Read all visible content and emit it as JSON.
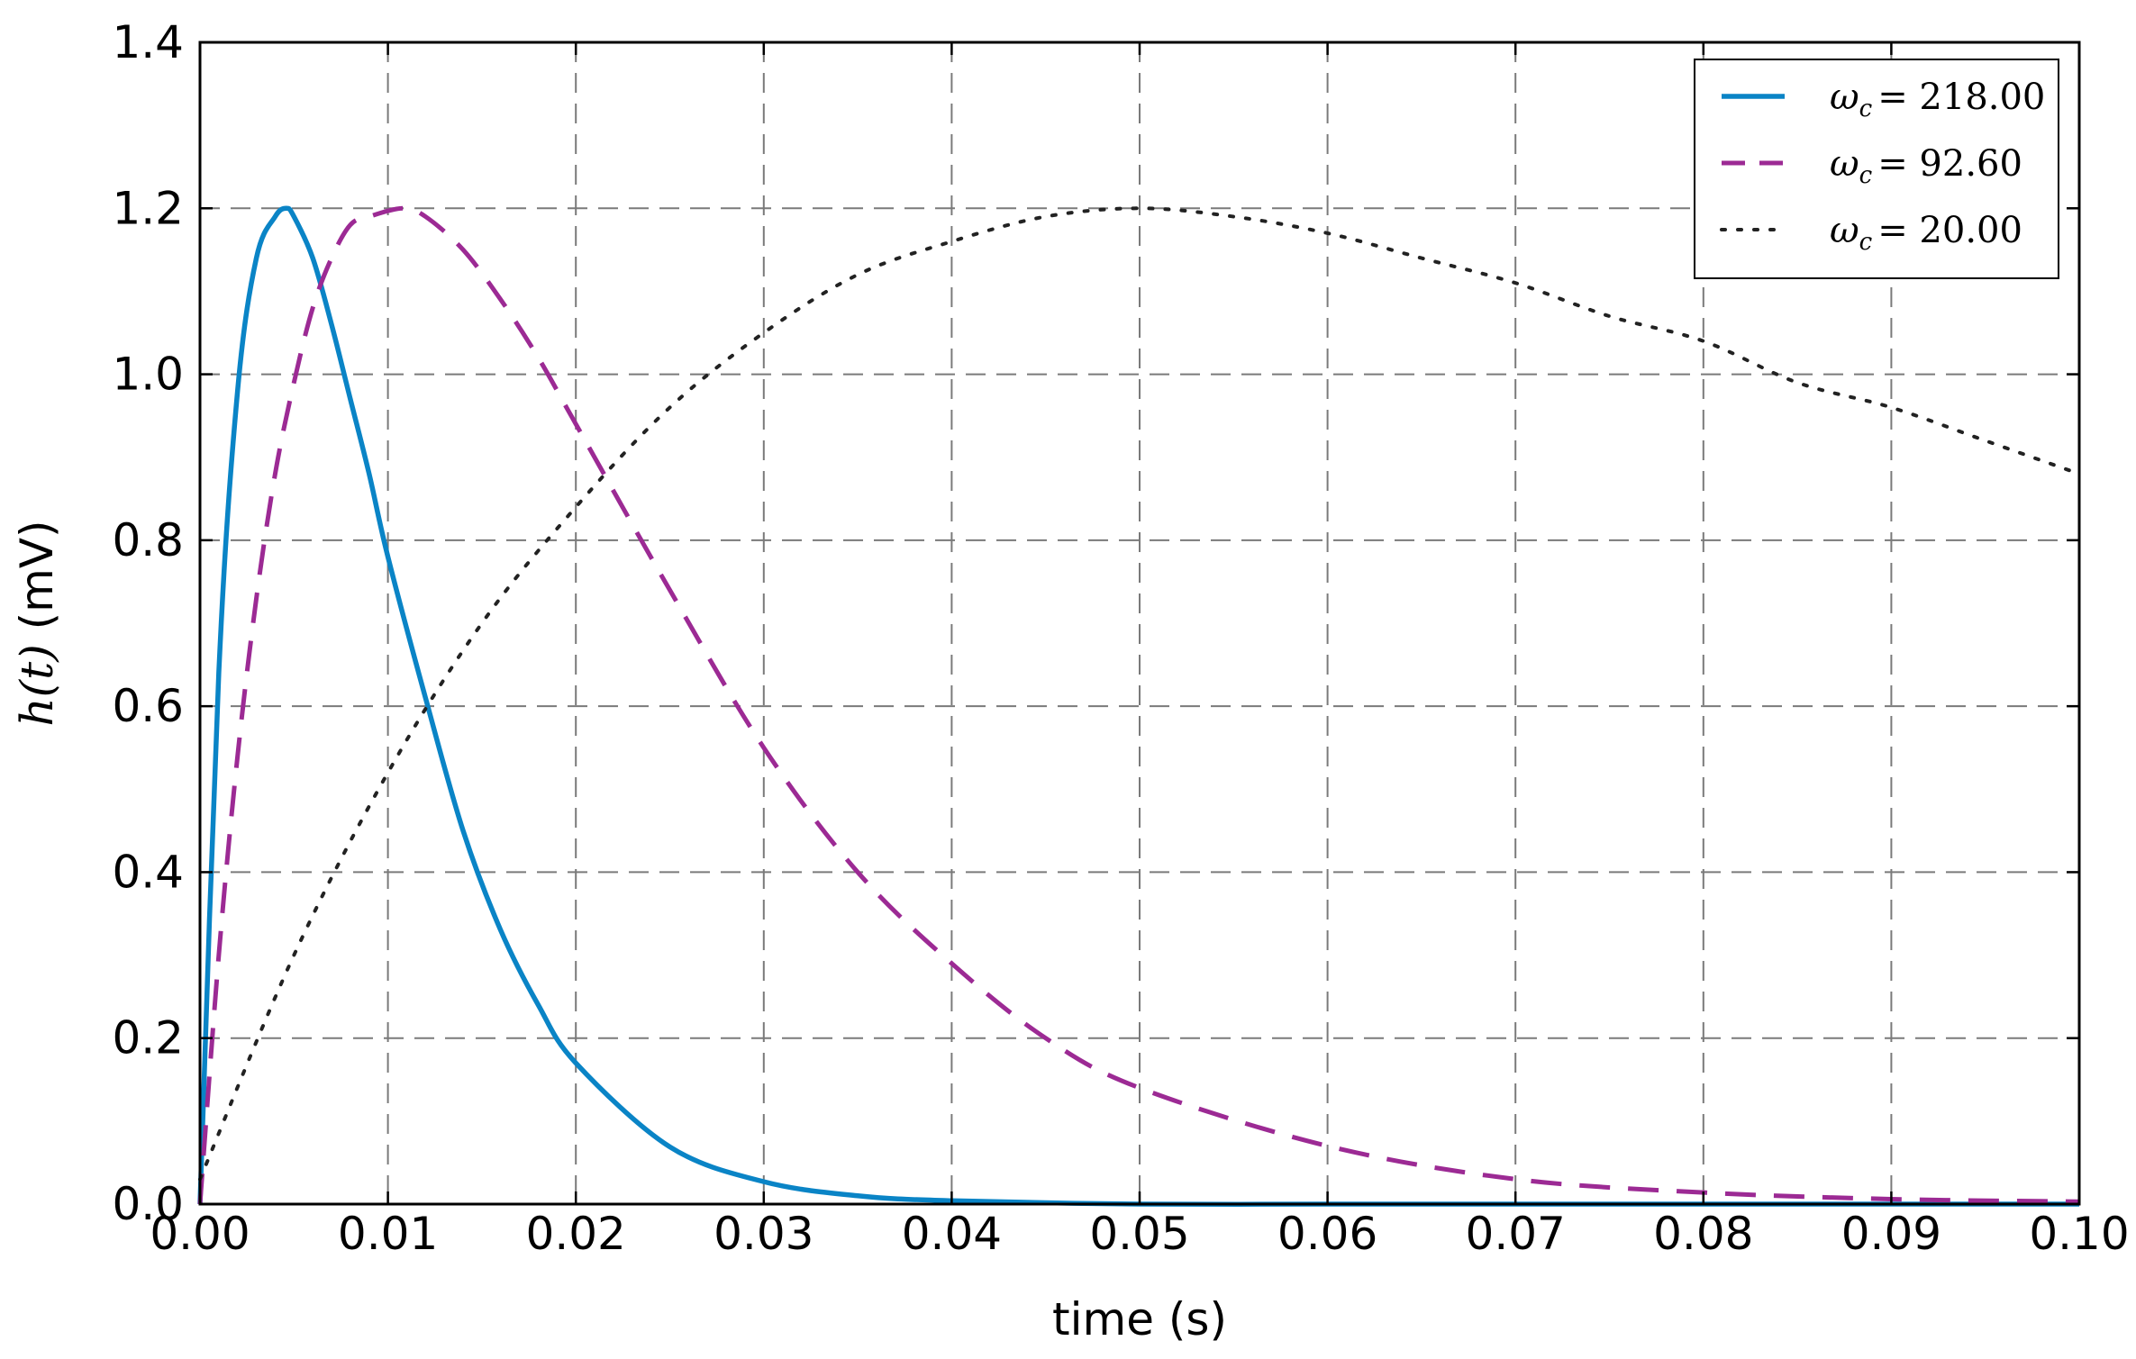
{
  "chart_data": {
    "type": "line",
    "xlabel": "time (s)",
    "ylabel": "h(t) (mV)",
    "xlim": [
      0.0,
      0.1
    ],
    "ylim": [
      0.0,
      1.4
    ],
    "x_ticks": [
      "0.00",
      "0.01",
      "0.02",
      "0.03",
      "0.04",
      "0.05",
      "0.06",
      "0.07",
      "0.08",
      "0.09",
      "0.10"
    ],
    "y_ticks": [
      "0.0",
      "0.2",
      "0.4",
      "0.6",
      "0.8",
      "1.0",
      "1.2",
      "1.4"
    ],
    "grid": true,
    "legend_position": "top-right",
    "series": [
      {
        "name": "ω_c = 218.00",
        "omega_c": 218.0,
        "peak": 1.2,
        "line_style": "solid",
        "color": "#0a84c6",
        "x": [
          0.0,
          0.001,
          0.002,
          0.003,
          0.004,
          0.0046,
          0.005,
          0.006,
          0.007,
          0.008,
          0.009,
          0.01,
          0.012,
          0.014,
          0.016,
          0.018,
          0.02,
          0.025,
          0.03,
          0.035,
          0.04,
          0.05,
          0.06,
          0.07,
          0.08,
          0.09,
          0.1
        ],
        "y": [
          0.0,
          0.64,
          0.98,
          1.14,
          1.19,
          1.2,
          1.19,
          1.14,
          1.06,
          0.97,
          0.88,
          0.78,
          0.61,
          0.45,
          0.33,
          0.24,
          0.17,
          0.069,
          0.027,
          0.01,
          0.004,
          0.0,
          0.0,
          0.0,
          0.0,
          0.0,
          0.0
        ]
      },
      {
        "name": "ω_c = 92.60",
        "omega_c": 92.6,
        "peak": 1.2,
        "line_style": "dashed",
        "color": "#9c2a94",
        "x": [
          0.0,
          0.001,
          0.002,
          0.003,
          0.004,
          0.005,
          0.006,
          0.007,
          0.008,
          0.009,
          0.0108,
          0.012,
          0.014,
          0.016,
          0.018,
          0.02,
          0.025,
          0.03,
          0.035,
          0.04,
          0.045,
          0.05,
          0.06,
          0.07,
          0.08,
          0.09,
          0.1
        ],
        "y": [
          0.0,
          0.3,
          0.54,
          0.73,
          0.88,
          0.99,
          1.08,
          1.14,
          1.18,
          1.19,
          1.2,
          1.19,
          1.15,
          1.09,
          1.02,
          0.94,
          0.74,
          0.55,
          0.4,
          0.29,
          0.2,
          0.14,
          0.07,
          0.03,
          0.014,
          0.006,
          0.003
        ]
      },
      {
        "name": "ω_c = 20.00",
        "omega_c": 20.0,
        "peak": 1.2,
        "line_style": "dotted",
        "color": "#222222",
        "x": [
          0.0,
          0.005,
          0.01,
          0.015,
          0.02,
          0.025,
          0.03,
          0.035,
          0.04,
          0.045,
          0.05,
          0.055,
          0.06,
          0.065,
          0.07,
          0.075,
          0.08,
          0.085,
          0.09,
          0.095,
          0.1
        ],
        "y": [
          0.03,
          0.3,
          0.52,
          0.7,
          0.84,
          0.96,
          1.05,
          1.12,
          1.16,
          1.19,
          1.2,
          1.19,
          1.17,
          1.14,
          1.11,
          1.07,
          1.04,
          0.99,
          0.96,
          0.92,
          0.88
        ]
      }
    ]
  },
  "legend": [
    {
      "symbol": "ω",
      "sub": "c",
      "value": "= 218.00"
    },
    {
      "symbol": "ω",
      "sub": "c",
      "value": "= 92.60"
    },
    {
      "symbol": "ω",
      "sub": "c",
      "value": "= 20.00"
    }
  ],
  "axes": {
    "x_label": "time (s)",
    "y_label_func": "h(t)",
    "y_label_unit": " (mV)"
  }
}
